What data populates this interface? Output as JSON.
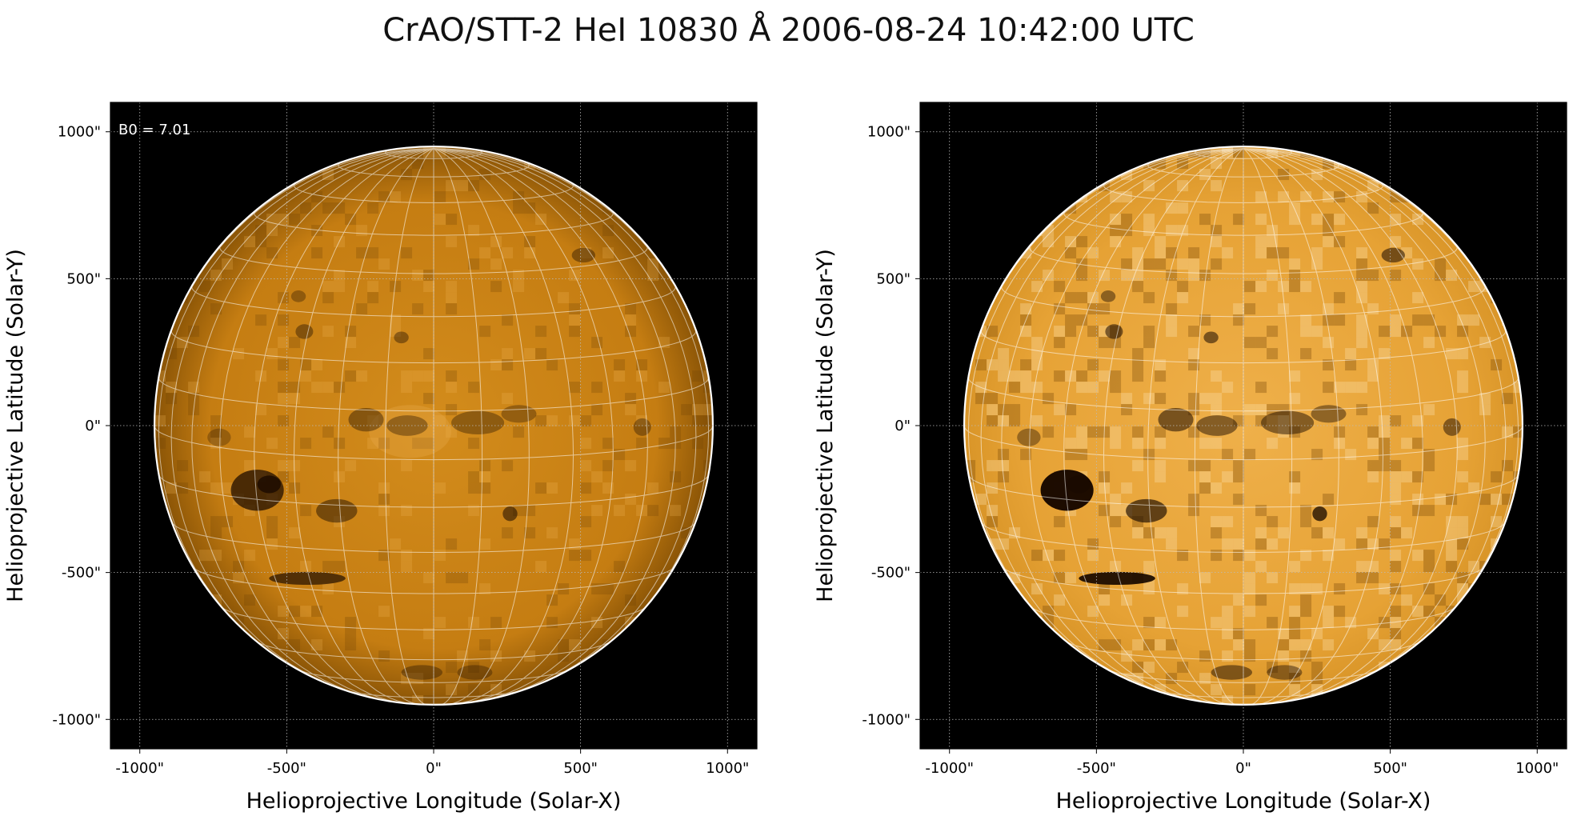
{
  "figure": {
    "title": "CrAO/STT-2 HeI 10830 Å 2006-08-24 10:42:00 UTC",
    "colors": {
      "background": "#000000",
      "disk_dark": "#2a1200",
      "disk_mid": "#c97e0e",
      "disk_bright": "#f2b95a",
      "grid": "#ffffff"
    }
  },
  "panels": [
    {
      "id": "left",
      "annotation": "B0 = 7.01",
      "xlabel": "Helioprojective Longitude (Solar-X)",
      "ylabel": "Helioprojective Latitude (Solar-Y)",
      "xlim": [
        -1100,
        1100
      ],
      "ylim": [
        -1100,
        1100
      ],
      "x_ticks": [
        {
          "value": -1000,
          "label": "-1000\""
        },
        {
          "value": -500,
          "label": "-500\""
        },
        {
          "value": 0,
          "label": "0\""
        },
        {
          "value": 500,
          "label": "500\""
        },
        {
          "value": 1000,
          "label": "1000\""
        }
      ],
      "y_ticks": [
        {
          "value": 1000,
          "label": "1000\""
        },
        {
          "value": 500,
          "label": "500\""
        },
        {
          "value": 0,
          "label": "0\""
        },
        {
          "value": -500,
          "label": "-500\""
        },
        {
          "value": -1000,
          "label": "-1000\""
        }
      ],
      "contrast": "low"
    },
    {
      "id": "right",
      "annotation": "",
      "xlabel": "Helioprojective Longitude (Solar-X)",
      "ylabel": "Helioprojective Latitude (Solar-Y)",
      "xlim": [
        -1100,
        1100
      ],
      "ylim": [
        -1100,
        1100
      ],
      "x_ticks": [
        {
          "value": -1000,
          "label": "-1000\""
        },
        {
          "value": -500,
          "label": "-500\""
        },
        {
          "value": 0,
          "label": "0\""
        },
        {
          "value": 500,
          "label": "500\""
        },
        {
          "value": 1000,
          "label": "1000\""
        }
      ],
      "y_ticks": [
        {
          "value": 1000,
          "label": "1000\""
        },
        {
          "value": 500,
          "label": "500\""
        },
        {
          "value": 0,
          "label": "0\""
        },
        {
          "value": -500,
          "label": "-500\""
        },
        {
          "value": -1000,
          "label": "-1000\""
        }
      ],
      "contrast": "high"
    }
  ]
}
